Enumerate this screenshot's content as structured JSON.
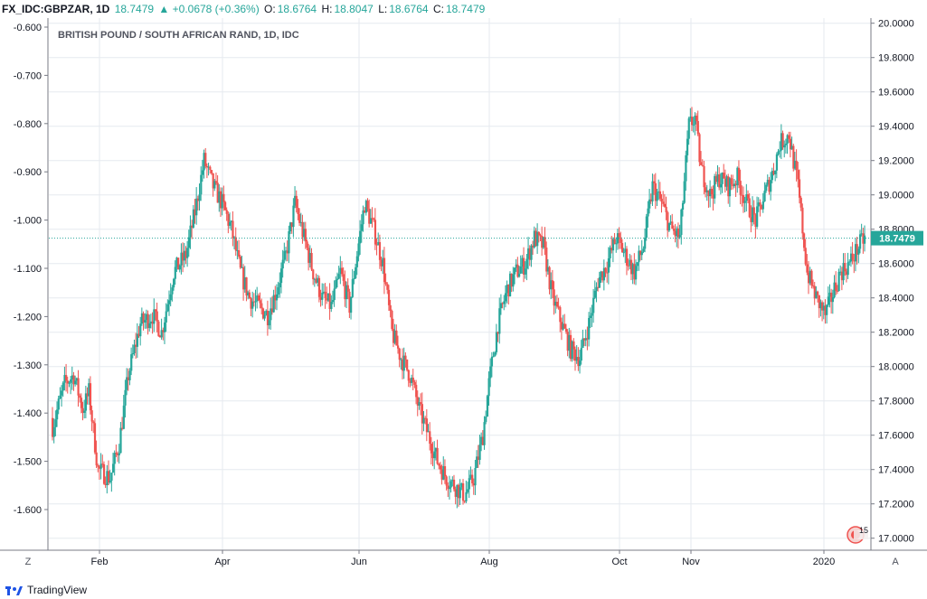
{
  "header": {
    "symbol": "FX_IDC:GBPZAR, 1D",
    "last": "18.7479",
    "change": "▲ +0.0678 (+0.36%)",
    "o_label": "O:",
    "o_value": "18.6764",
    "h_label": "H:",
    "h_value": "18.8047",
    "l_label": "L:",
    "l_value": "18.6764",
    "c_label": "C:",
    "c_value": "18.7479"
  },
  "footer": {
    "brand": "TradingView"
  },
  "controls": {
    "left": "Z",
    "right": "A",
    "events_badge": "15"
  },
  "colors": {
    "up": "#26a69a",
    "down": "#ef5350",
    "grid": "#e6eaef",
    "axis": "#787b86"
  },
  "chart_data": {
    "type": "candlestick",
    "title": "BRITISH POUND / SOUTH AFRICAN RAND, 1D, IDC",
    "last_price_label": "18.7479",
    "last_price": 18.7479,
    "ylim": [
      16.93,
      20.03
    ],
    "left_axis_ticks": [
      "-0.600",
      "-0.700",
      "-0.800",
      "-0.900",
      "-1.000",
      "-1.100",
      "-1.200",
      "-1.300",
      "-1.400",
      "-1.500",
      "-1.600"
    ],
    "right_axis_ticks": [
      "20.0000",
      "19.8000",
      "19.6000",
      "19.4000",
      "19.2000",
      "19.0000",
      "18.8000",
      "18.6000",
      "18.4000",
      "18.2000",
      "18.0000",
      "17.8000",
      "17.6000",
      "17.4000",
      "17.2000",
      "17.0000"
    ],
    "x_tick_labels": [
      "Feb",
      "Apr",
      "Jun",
      "Aug",
      "Oct",
      "Nov",
      "2020"
    ],
    "grid": true,
    "close_path": [
      [
        0,
        17.65
      ],
      [
        8,
        17.9
      ],
      [
        14,
        17.95
      ],
      [
        20,
        17.75
      ],
      [
        24,
        17.85
      ],
      [
        30,
        17.4
      ],
      [
        38,
        17.35
      ],
      [
        44,
        17.55
      ],
      [
        50,
        17.95
      ],
      [
        58,
        18.25
      ],
      [
        66,
        18.3
      ],
      [
        72,
        18.2
      ],
      [
        80,
        18.55
      ],
      [
        88,
        18.65
      ],
      [
        94,
        18.9
      ],
      [
        100,
        19.2
      ],
      [
        106,
        19.05
      ],
      [
        112,
        18.95
      ],
      [
        118,
        18.8
      ],
      [
        124,
        18.55
      ],
      [
        130,
        18.4
      ],
      [
        136,
        18.35
      ],
      [
        142,
        18.3
      ],
      [
        148,
        18.45
      ],
      [
        154,
        18.65
      ],
      [
        160,
        18.95
      ],
      [
        166,
        18.75
      ],
      [
        172,
        18.55
      ],
      [
        178,
        18.4
      ],
      [
        184,
        18.35
      ],
      [
        190,
        18.55
      ],
      [
        196,
        18.35
      ],
      [
        200,
        18.6
      ],
      [
        206,
        18.95
      ],
      [
        212,
        18.8
      ],
      [
        218,
        18.6
      ],
      [
        224,
        18.2
      ],
      [
        230,
        18.05
      ],
      [
        236,
        17.95
      ],
      [
        242,
        17.75
      ],
      [
        248,
        17.6
      ],
      [
        254,
        17.45
      ],
      [
        260,
        17.35
      ],
      [
        266,
        17.3
      ],
      [
        272,
        17.25
      ],
      [
        278,
        17.35
      ],
      [
        284,
        17.6
      ],
      [
        288,
        17.9
      ],
      [
        294,
        18.25
      ],
      [
        300,
        18.45
      ],
      [
        306,
        18.55
      ],
      [
        312,
        18.6
      ],
      [
        318,
        18.75
      ],
      [
        324,
        18.7
      ],
      [
        330,
        18.4
      ],
      [
        336,
        18.25
      ],
      [
        342,
        18.1
      ],
      [
        348,
        18.05
      ],
      [
        354,
        18.25
      ],
      [
        360,
        18.5
      ],
      [
        366,
        18.6
      ],
      [
        372,
        18.75
      ],
      [
        378,
        18.65
      ],
      [
        384,
        18.55
      ],
      [
        390,
        18.7
      ],
      [
        396,
        19.05
      ],
      [
        402,
        18.95
      ],
      [
        408,
        18.8
      ],
      [
        414,
        18.75
      ],
      [
        420,
        19.4
      ],
      [
        424,
        19.45
      ],
      [
        428,
        19.15
      ],
      [
        434,
        19.0
      ],
      [
        440,
        19.1
      ],
      [
        446,
        19.05
      ],
      [
        452,
        19.1
      ],
      [
        458,
        18.95
      ],
      [
        464,
        18.85
      ],
      [
        470,
        19.0
      ],
      [
        476,
        19.15
      ],
      [
        480,
        19.3
      ],
      [
        486,
        19.35
      ],
      [
        492,
        19.05
      ],
      [
        498,
        18.55
      ],
      [
        504,
        18.4
      ],
      [
        510,
        18.3
      ],
      [
        516,
        18.45
      ],
      [
        520,
        18.55
      ],
      [
        526,
        18.6
      ],
      [
        532,
        18.7
      ],
      [
        536,
        18.75
      ]
    ]
  }
}
